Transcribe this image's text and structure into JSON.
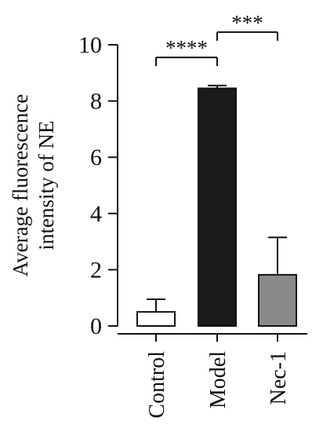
{
  "chart_data": {
    "type": "bar",
    "categories": [
      "Control",
      "Model",
      "Nec-1"
    ],
    "values": [
      0.5,
      8.45,
      1.82
    ],
    "errors": [
      0.45,
      0.1,
      1.33
    ],
    "bar_colors": [
      "#ffffff",
      "#1a1a1a",
      "#8a8a8a"
    ],
    "bar_edge_color": "#111111",
    "ylabel_line1": "Average fluorescence",
    "ylabel_line2": "intensity of NE",
    "xlabel": "",
    "ylim": [
      0,
      10
    ],
    "yticks": [
      0,
      2,
      4,
      6,
      8,
      10
    ],
    "grid": false,
    "significance": [
      {
        "from": "Control",
        "to": "Model",
        "label": "****",
        "y": 9.55
      },
      {
        "from": "Model",
        "to": "Nec-1",
        "label": "***",
        "y": 10.45
      }
    ]
  }
}
